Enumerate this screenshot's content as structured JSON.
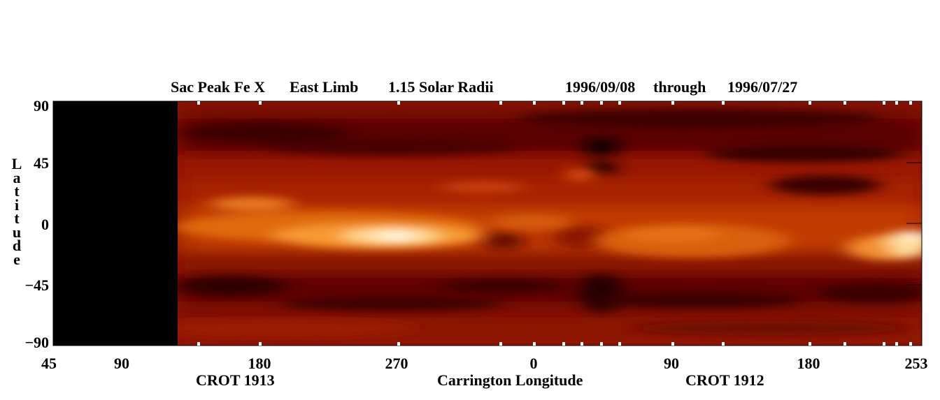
{
  "chart_data": {
    "type": "heatmap",
    "title_parts": {
      "instrument": "Sac Peak Fe X",
      "limb": "East Limb",
      "height": "1.15 Solar Radii",
      "start_date": "1996/09/08",
      "through": "through",
      "end_date": "1996/07/27"
    },
    "ylabel": "Latitude",
    "xlabel": "Carrington Longitude",
    "crot_labels": [
      "CROT 1913",
      "CROT 1912"
    ],
    "y_ticks": [
      "90",
      "45",
      "0",
      "−45",
      "−90"
    ],
    "x_ticks": [
      "45",
      "90",
      "180",
      "270",
      "0",
      "90",
      "180",
      "253"
    ],
    "ylim": [
      -90,
      90
    ],
    "colormap": [
      "#000000",
      "#3a0000",
      "#7a0a00",
      "#b52a00",
      "#e06010",
      "#f9a040",
      "#fff6e0"
    ],
    "no_data_region": "left edge through ~125° of CROT 1913",
    "bright_features": [
      {
        "rotation": "CROT 1913",
        "latitude_range": [
          -20,
          15
        ],
        "longitude_range": [
          140,
          340
        ],
        "peak": "near 270, lat -10"
      },
      {
        "rotation": "CROT 1912",
        "latitude_range": [
          -30,
          0
        ],
        "longitude_range": [
          60,
          253
        ],
        "peak": "near 253, lat -10"
      }
    ]
  }
}
